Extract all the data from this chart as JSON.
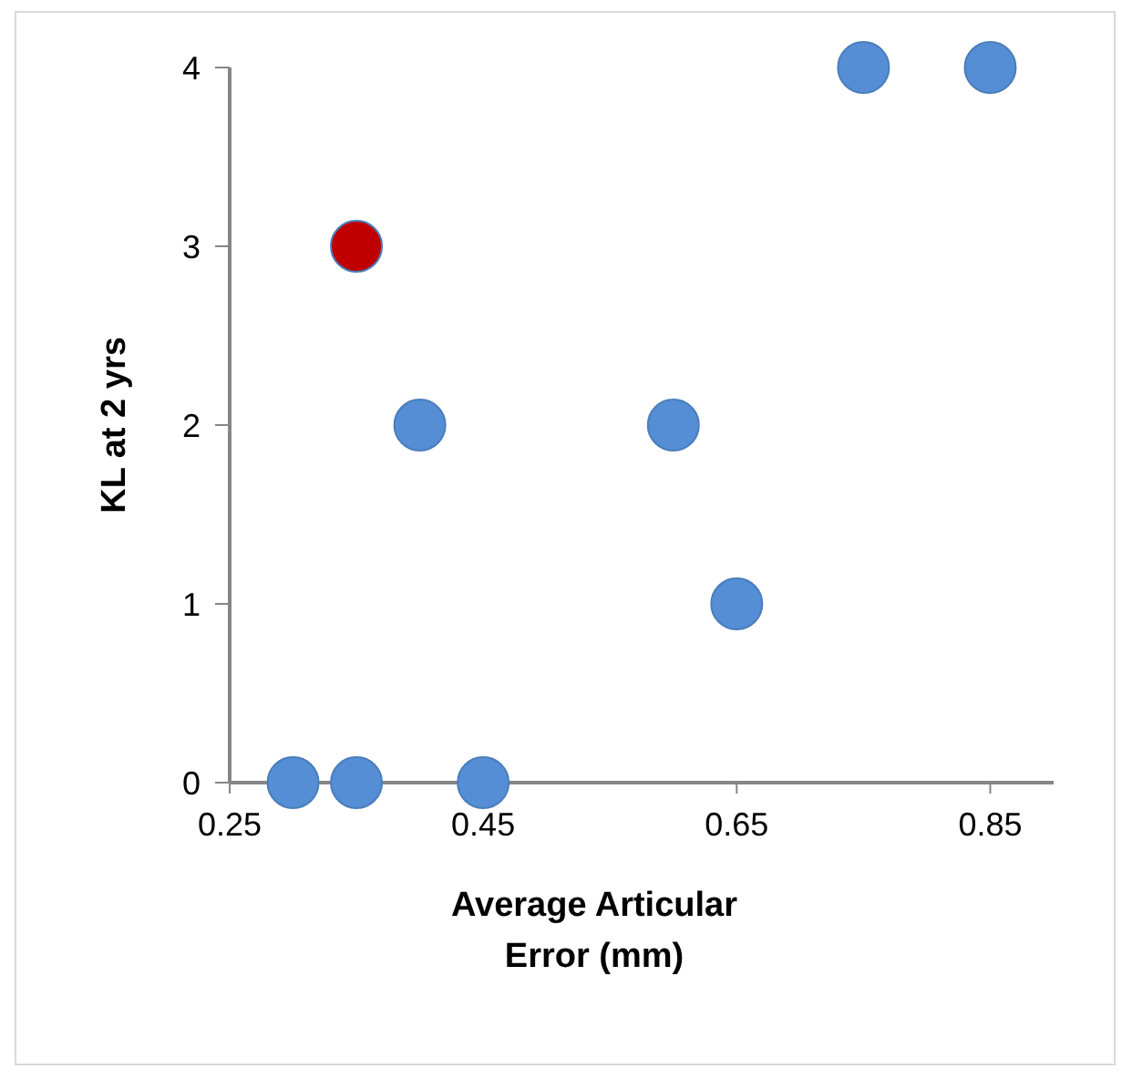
{
  "chart_data": {
    "type": "scatter",
    "xlabel": "Average Articular Error (mm)",
    "ylabel": "KL at 2 yrs",
    "series": [
      {
        "color": "#558ed5",
        "x": [
          0.3,
          0.35,
          0.45,
          0.4,
          0.6,
          0.65,
          0.75,
          0.85
        ],
        "values": [
          0,
          0,
          0,
          2,
          2,
          1,
          4,
          4
        ]
      },
      {
        "color": "#c00000",
        "x": [
          0.35
        ],
        "values": [
          3
        ]
      }
    ],
    "xlim": [
      0.25,
      0.9
    ],
    "xticks": [
      0.25,
      0.45,
      0.65,
      0.85
    ],
    "ylim": [
      0,
      4
    ],
    "yticks": [
      0,
      1,
      2,
      3,
      4
    ],
    "marker": "circle"
  }
}
